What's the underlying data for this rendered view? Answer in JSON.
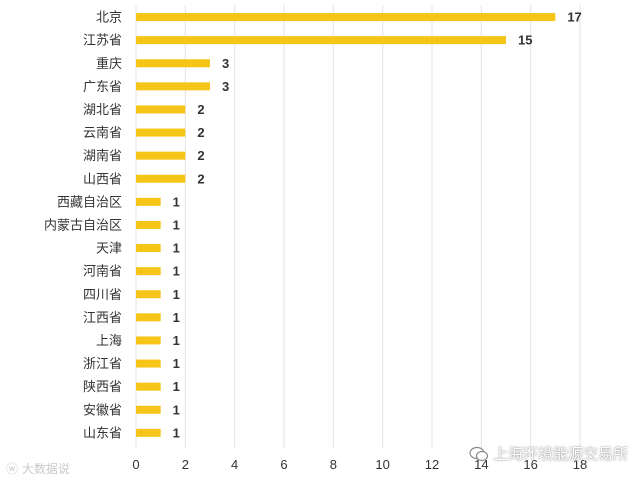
{
  "chart_data": {
    "type": "bar",
    "orientation": "horizontal",
    "categories": [
      "北京",
      "江苏省",
      "重庆",
      "广东省",
      "湖北省",
      "云南省",
      "湖南省",
      "山西省",
      "西藏自治区",
      "内蒙古自治区",
      "天津",
      "河南省",
      "四川省",
      "江西省",
      "上海",
      "浙江省",
      "陕西省",
      "安徽省",
      "山东省"
    ],
    "values": [
      17,
      15,
      3,
      3,
      2,
      2,
      2,
      2,
      1,
      1,
      1,
      1,
      1,
      1,
      1,
      1,
      1,
      1,
      1
    ],
    "xlim": [
      0,
      18
    ],
    "xticks": [
      0,
      2,
      4,
      6,
      8,
      10,
      12,
      14,
      16,
      18
    ],
    "grid": "vertical",
    "bar_color": "#f5c518",
    "grid_color": "#e8e2e2"
  },
  "watermarks": {
    "left": "大数据说",
    "right": "上海环境能源交易所"
  }
}
